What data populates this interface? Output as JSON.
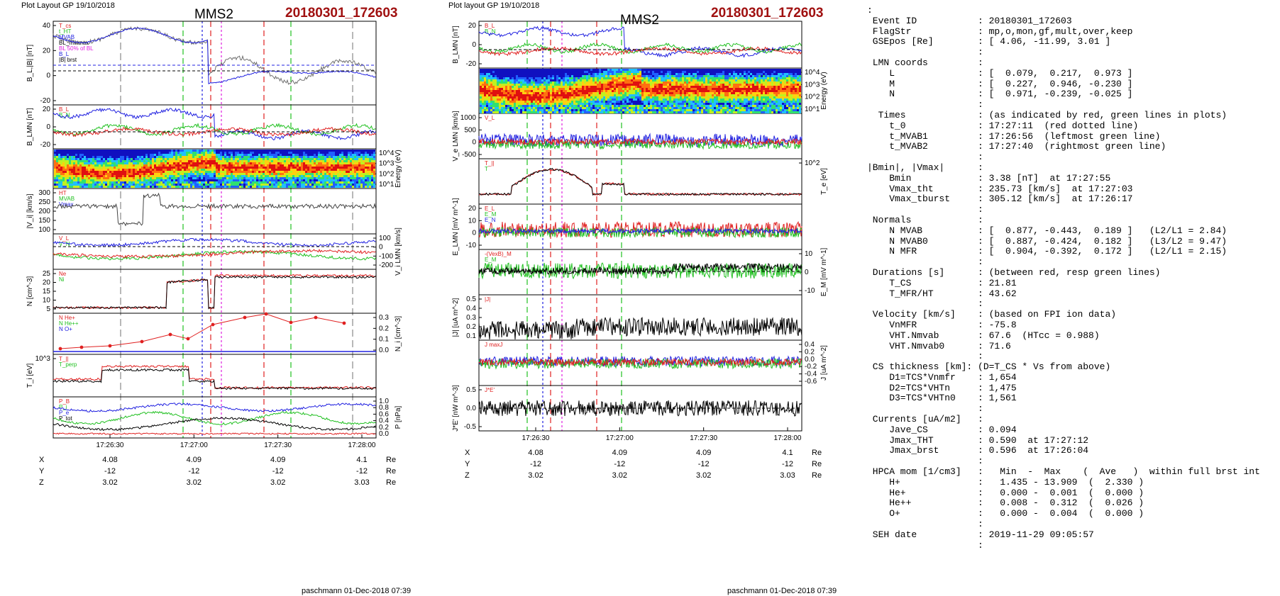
{
  "plots": [
    {
      "header": "Plot Layout GP 19/10/2018",
      "spacecraft": "MMS2",
      "event": "20180301_172603",
      "footer": "paschmann 01-Dec-2018 07:39",
      "time_ticks": [
        "17:26:30",
        "17:27:00",
        "17:27:30",
        "17:28:00"
      ],
      "coords": {
        "rows": [
          {
            "label": "X",
            "values": [
              "4.08",
              "4.09",
              "4.09",
              "4.1"
            ],
            "unit": "Re"
          },
          {
            "label": "Y",
            "values": [
              "-12",
              "-12",
              "-12",
              "-12"
            ],
            "unit": "Re"
          },
          {
            "label": "Z",
            "values": [
              "3.02",
              "3.02",
              "3.02",
              "3.03"
            ],
            "unit": "Re"
          }
        ]
      },
      "panels": [
        {
          "ylabel": "B_L,|B| [nT]",
          "ticks": [
            "40",
            "20",
            "0",
            "-20"
          ],
          "legend": [
            "T_cs",
            "t_HT",
            "MVAB",
            "BL_minmax",
            "BL 50% of BL",
            "B_L",
            "|B| brst"
          ],
          "side": "left"
        },
        {
          "ylabel": "B_LMN [nT]",
          "ticks": [
            "20",
            "0",
            "-20"
          ],
          "legend": [
            "B_L",
            "B_N"
          ],
          "side": "left"
        },
        {
          "ylabel": "Energy (eV)",
          "ticks": [
            "10^4",
            "10^3",
            "10^2",
            "10^1"
          ],
          "side": "right"
        },
        {
          "ylabel": "|V_i| [km/s]",
          "ticks": [
            "300",
            "250",
            "200",
            "150",
            "100"
          ],
          "legend": [
            "HT",
            "MVAB",
            "Vmax"
          ],
          "side": "left"
        },
        {
          "ylabel": "V_i LMN [km/s]",
          "ticks": [
            "100",
            "0",
            "-100",
            "-200"
          ],
          "legend": [
            "V_L",
            "V_N"
          ],
          "side": "right"
        },
        {
          "ylabel": "N [cm^-3]",
          "ticks": [
            "25",
            "20",
            "15",
            "10",
            "5"
          ],
          "legend": [
            "Ne",
            "Ni"
          ],
          "side": "left"
        },
        {
          "ylabel": "N_i [cm^-3]",
          "ticks": [
            "0.3",
            "0.2",
            "0.1",
            "0.0"
          ],
          "legend": [
            "N He+",
            "N He++",
            "N O+"
          ],
          "side": "right"
        },
        {
          "ylabel": "T_i [eV]",
          "ticks": [
            "10^3"
          ],
          "legend": [
            "T_||",
            "T_perp"
          ],
          "side": "left"
        },
        {
          "ylabel": "P [nPa]",
          "ticks": [
            "1.0",
            "0.8",
            "0.6",
            "0.4",
            "0.2",
            "0.0"
          ],
          "legend": [
            "P_B",
            "P_i",
            "P_e",
            "P_tot"
          ],
          "side": "right"
        }
      ]
    },
    {
      "header": "Plot layout GP 19/10/2018",
      "spacecraft": "MMS2",
      "event": "20180301_172603",
      "footer": "paschmann 01-Dec-2018 07:39",
      "time_ticks": [
        "17:26:30",
        "17:27:00",
        "17:27:30",
        "17:28:00"
      ],
      "coords": {
        "rows": [
          {
            "label": "X",
            "values": [
              "4.08",
              "4.09",
              "4.09",
              "4.1"
            ],
            "unit": "Re"
          },
          {
            "label": "Y",
            "values": [
              "-12",
              "-12",
              "-12",
              "-12"
            ],
            "unit": "Re"
          },
          {
            "label": "Z",
            "values": [
              "3.02",
              "3.02",
              "3.02",
              "3.03"
            ],
            "unit": "Re"
          }
        ]
      },
      "panels": [
        {
          "ylabel": "B_LMN [nT]",
          "ticks": [
            "20",
            "0",
            "-20"
          ],
          "legend": [
            "B_L",
            "B_N"
          ],
          "side": "left"
        },
        {
          "ylabel": "Energy (eV)",
          "ticks": [
            "10^4",
            "10^3",
            "10^2",
            "10^1"
          ],
          "side": "right"
        },
        {
          "ylabel": "V_e LMN [km/s]",
          "ticks": [
            "1000",
            "500",
            "0",
            "-500"
          ],
          "legend": [
            "V_L"
          ],
          "side": "left"
        },
        {
          "ylabel": "T_e [eV]",
          "ticks": [
            "10^2"
          ],
          "legend": [
            "T_||",
            "T"
          ],
          "side": "right"
        },
        {
          "ylabel": "E_LMN [mV m^-1]",
          "ticks": [
            "20",
            "10",
            "0",
            "-10"
          ],
          "legend": [
            "E_L",
            "E_M",
            "E_N"
          ],
          "side": "left"
        },
        {
          "ylabel": "E_M [mV m^-1]",
          "ticks": [
            "10",
            "0",
            "-10"
          ],
          "legend": [
            "-(VexB)_M",
            "E_M"
          ],
          "side": "right"
        },
        {
          "ylabel": "|J| [uA m^-2]",
          "ticks": [
            "0.5",
            "0.4",
            "0.3",
            "0.2",
            "0.1"
          ],
          "legend": [
            "|J|"
          ],
          "side": "left"
        },
        {
          "ylabel": "J [uA m^-2]",
          "ticks": [
            "0.4",
            "0.2",
            "0.0",
            "-0.2",
            "-0.4",
            "-0.6"
          ],
          "legend": [
            "J maxJ"
          ],
          "side": "right"
        },
        {
          "ylabel": "J*E' [nW m^-3]",
          "ticks": [
            "0.5",
            "0.0",
            "-0.5"
          ],
          "legend": [
            "J*E'"
          ],
          "side": "left"
        }
      ]
    }
  ],
  "info_lines": [
    ":",
    " Event ID           : 20180301_172603",
    " FlagStr            : mp,o,mon,gf,mult,over,keep",
    " GSEpos [Re]        : [ 4.06, -11.99, 3.01 ]",
    "                    :",
    " LMN coords         :",
    "    L               : [  0.079,  0.217,  0.973 ]",
    "    M               : [  0.227,  0.946, -0.230 ]",
    "    N               : [  0.971, -0.239, -0.025 ]",
    "                    :",
    "  Times             : (as indicated by red, green lines in plots)",
    "    t_0             : 17:27:11  (red dotted line)",
    "    t_MVAB1         : 17:26:56  (leftmost green line)",
    "    t_MVAB2         : 17:27:40  (rightmost green line)",
    "                    :",
    "|Bmin|, |Vmax|      :",
    "    Bmin            : 3.38 [nT]  at 17:27:55",
    "    Vmax_tht        : 235.73 [km/s]  at 17:27:03",
    "    Vmax_tburst     : 305.12 [km/s]  at 17:26:17",
    "                    :",
    " Normals            :",
    "    N MVAB          : [  0.877, -0.443,  0.189 ]   (L2/L1 = 2.84)",
    "    N MVAB0         : [  0.887, -0.424,  0.182 ]   (L3/L2 = 9.47)",
    "    N MFR           : [  0.904, -0.392,  0.172 ]   (L2/L1 = 2.15)",
    "                    :",
    " Durations [s]      : (between red, resp green lines)",
    "    T_CS            : 21.81",
    "    T_MFR/HT        : 43.62",
    "                    :",
    " Velocity [km/s]    : (based on FPI ion data)",
    "    VnMFR           : -75.8",
    "    VHT.Nmvab       : 67.6  (HTcc = 0.988)",
    "    VHT.Nmvab0      : 71.6",
    "                    :",
    " CS thickness [km]: (D=T_CS * Vs from above)",
    "    D1=TCS*Vnmfr    : 1,654",
    "    D2=TCS*VHTn     : 1,475",
    "    D3=TCS*VHTn0    : 1,561",
    "                    :",
    " Currents [uA/m2]   :",
    "    Jave_CS         : 0.094",
    "    Jmax_THT        : 0.590  at 17:27:12",
    "    Jmax_brst       : 0.596  at 17:26:04",
    "                    :",
    " HPCA mom [1/cm3]   :   Min  -  Max    (  Ave   )  within full brst int",
    "    H+              :   1.435 - 13.909  (  2.330 )",
    "    He+             :   0.000 -  0.001  (  0.000 )",
    "    He++            :   0.008 -  0.312  (  0.026 )",
    "    O+              :   0.000 -  0.004  (  0.000 )",
    "                    :",
    " SEH date           : 2019-11-29 09:05:57",
    "                    :"
  ],
  "colors": {
    "red": "#e02020",
    "green": "#20c020",
    "blue": "#2020e0",
    "black": "#000000",
    "magenta": "#e020e0",
    "title_red": "#a01010"
  }
}
